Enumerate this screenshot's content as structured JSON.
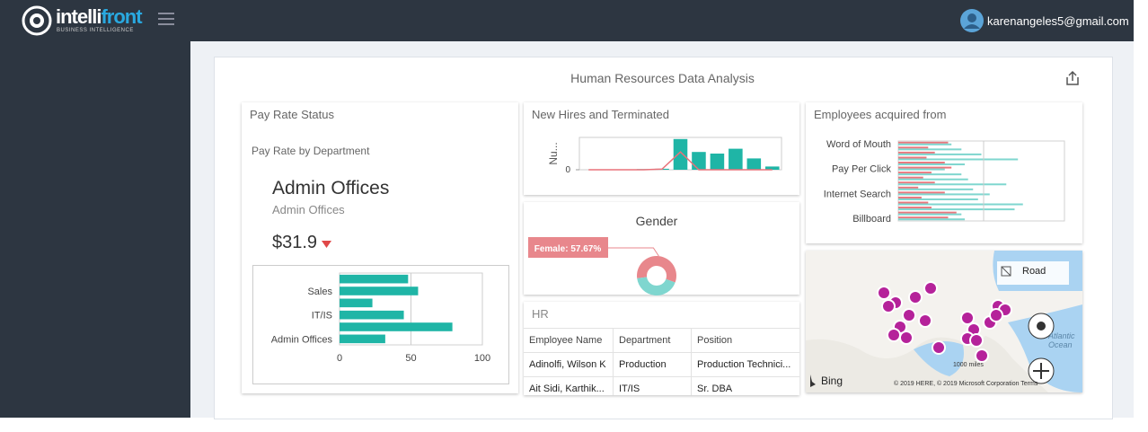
{
  "header": {
    "brand_a": "intelli",
    "brand_b": "front",
    "brand_sub": "BUSINESS INTELLIGENCE",
    "user": "karenangeles5@gmail.com"
  },
  "dashboard_title": "Human Resources Data Analysis",
  "pay_rate": {
    "title": "Pay Rate Status",
    "subtitle": "Pay Rate by Department",
    "selected": "Admin Offices",
    "selected_sub": "Admin Offices",
    "amount": "$31.9"
  },
  "new_hires": {
    "title": "New Hires and Terminated"
  },
  "acquired": {
    "title": "Employees acquired from"
  },
  "chart_data": [
    {
      "type": "bar",
      "orientation": "horizontal",
      "categories": [
        null,
        "Sales",
        null,
        "IT/IS",
        null,
        "Admin Offices"
      ],
      "series": [
        {
          "color": "#1fb5a6",
          "values": [
            48,
            55,
            23,
            45,
            79,
            32
          ]
        }
      ],
      "xlim": [
        0,
        100
      ],
      "xticks": [
        0,
        50,
        100
      ],
      "grid": true
    },
    {
      "type": "combo",
      "y_label": "Nu...",
      "categories": [
        null,
        null,
        null,
        null,
        null,
        null,
        null,
        null,
        null,
        null,
        null
      ],
      "series": [
        {
          "type": "bar",
          "color": "#1fb5a6",
          "values": [
            0,
            0,
            0,
            0.2,
            0.3,
            9.5,
            5.5,
            5,
            6.5,
            3.5,
            1
          ]
        },
        {
          "type": "line",
          "color": "#e8727a",
          "values": [
            0,
            0,
            0,
            0,
            0.2,
            5.5,
            0,
            0,
            0,
            0,
            0
          ]
        }
      ],
      "ylim": [
        0,
        10
      ],
      "yticks": [
        0
      ]
    },
    {
      "type": "pie",
      "donut": true,
      "title": "Gender",
      "values": [
        57.67,
        42.33
      ],
      "value_labels": [
        "Female: 57.67%",
        null
      ],
      "colors": [
        "#e8878c",
        "#7fd6cf"
      ]
    },
    {
      "type": "bar",
      "orientation": "horizontal",
      "categories": [
        "Word of Mouth",
        null,
        null,
        null,
        null,
        "Pay Per Click",
        null,
        null,
        null,
        null,
        "Internet Search",
        null,
        null,
        null,
        null,
        "Billboard"
      ],
      "series": [
        {
          "color": "#e8787e",
          "values": [
            30,
            18,
            22,
            17,
            28,
            32,
            20,
            15,
            22,
            12,
            28,
            14,
            18,
            20,
            35,
            30
          ]
        },
        {
          "color": "#7fd6cf",
          "values": [
            32,
            38,
            50,
            72,
            40,
            28,
            38,
            42,
            65,
            45,
            55,
            48,
            75,
            70,
            38,
            40
          ]
        }
      ],
      "xlim": [
        0,
        100
      ]
    }
  ],
  "hr_table": {
    "title": "HR",
    "columns": [
      "Employee Name",
      "Department",
      "Position"
    ],
    "rows": [
      [
        "Adinolfi, Wilson K",
        "Production",
        "Production Technici..."
      ],
      [
        "Ait Sidi, Karthik...",
        "IT/IS",
        "Sr. DBA"
      ]
    ]
  },
  "map": {
    "layer": "Road",
    "provider": "Bing",
    "scale": "1000 miles",
    "credits": "© 2019 HERE, © 2019 Microsoft Corporation Terms",
    "ocean": "Atlantic Ocean"
  }
}
